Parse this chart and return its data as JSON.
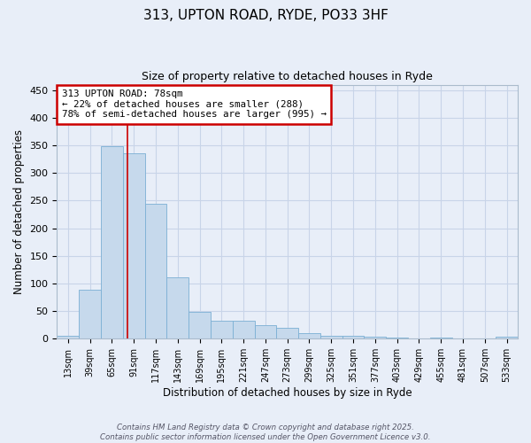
{
  "title1": "313, UPTON ROAD, RYDE, PO33 3HF",
  "title2": "Size of property relative to detached houses in Ryde",
  "xlabel": "Distribution of detached houses by size in Ryde",
  "ylabel": "Number of detached properties",
  "categories": [
    "13sqm",
    "39sqm",
    "65sqm",
    "91sqm",
    "117sqm",
    "143sqm",
    "169sqm",
    "195sqm",
    "221sqm",
    "247sqm",
    "273sqm",
    "299sqm",
    "325sqm",
    "351sqm",
    "377sqm",
    "403sqm",
    "429sqm",
    "455sqm",
    "481sqm",
    "507sqm",
    "533sqm"
  ],
  "values": [
    6,
    88,
    348,
    335,
    245,
    112,
    49,
    32,
    32,
    25,
    20,
    10,
    5,
    6,
    4,
    2,
    1,
    2,
    1,
    1,
    3
  ],
  "bar_color": "#c6d9ec",
  "bar_edge_color": "#7bafd4",
  "grid_color": "#c8d4e8",
  "background_color": "#e8eef8",
  "red_line_x": 2.72,
  "annotation_text": "313 UPTON ROAD: 78sqm\n← 22% of detached houses are smaller (288)\n78% of semi-detached houses are larger (995) →",
  "annotation_box_color": "#ffffff",
  "annotation_box_edge": "#cc0000",
  "footer_text": "Contains HM Land Registry data © Crown copyright and database right 2025.\nContains public sector information licensed under the Open Government Licence v3.0.",
  "ylim": [
    0,
    460
  ],
  "yticks": [
    0,
    50,
    100,
    150,
    200,
    250,
    300,
    350,
    400,
    450
  ]
}
